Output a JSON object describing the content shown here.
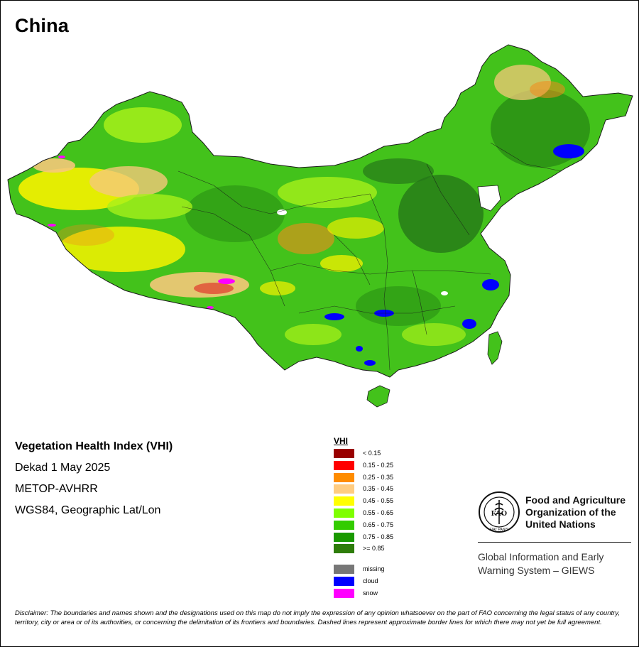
{
  "map": {
    "title": "China",
    "region_colors": {
      "land_base": "#43c21b",
      "land_dark": "#2a8f14",
      "land_forest": "#257818",
      "dry_light": "#a6f01a",
      "dry_yellow": "#f6f200",
      "dry_tan": "#f5c87a",
      "dry_orange": "#f38a1c",
      "dry_red": "#e02020",
      "cloud": "#0000ff",
      "snow": "#ff00ff",
      "missing": "#ffffff",
      "border": "#1a1a1a"
    }
  },
  "info": {
    "index_name": "Vegetation Health Index (VHI)",
    "period": "Dekad 1 May 2025",
    "sensor": "METOP-AVHRR",
    "projection": "WGS84, Geographic Lat/Lon"
  },
  "legend": {
    "title": "VHI",
    "classes": [
      {
        "label": "< 0.15",
        "color": "#990000"
      },
      {
        "label": "0.15 - 0.25",
        "color": "#ff0000"
      },
      {
        "label": "0.25 - 0.35",
        "color": "#ff8c00"
      },
      {
        "label": "0.35 - 0.45",
        "color": "#ffcc80"
      },
      {
        "label": "0.45 - 0.55",
        "color": "#ffff00"
      },
      {
        "label": "0.55 - 0.65",
        "color": "#7fff00"
      },
      {
        "label": "0.65 - 0.75",
        "color": "#33cc00"
      },
      {
        "label": "0.75 - 0.85",
        "color": "#1a9900"
      },
      {
        "label": ">= 0.85",
        "color": "#2e7d0a"
      }
    ],
    "special": [
      {
        "label": "missing",
        "color": "#777777"
      },
      {
        "label": "cloud",
        "color": "#0000ff"
      },
      {
        "label": "snow",
        "color": "#ff00ff"
      }
    ]
  },
  "organization": {
    "logo_letters": "FAO",
    "logo_motto": "FIAT PANIS",
    "name_line1": "Food and Agriculture",
    "name_line2": "Organization of the",
    "name_line3": "United Nations",
    "system_line1": "Global Information and Early",
    "system_line2": "Warning System – GIEWS"
  },
  "disclaimer": "Disclaimer: The boundaries and names shown and the designations used on this map do not imply the expression of any opinion whatsoever on the part of FAO concerning the legal status of any country, territory, city or area or of its authorities, or concerning the delimitation of its frontiers and boundaries. Dashed lines represent approximate border lines for which there may not yet be full agreement."
}
